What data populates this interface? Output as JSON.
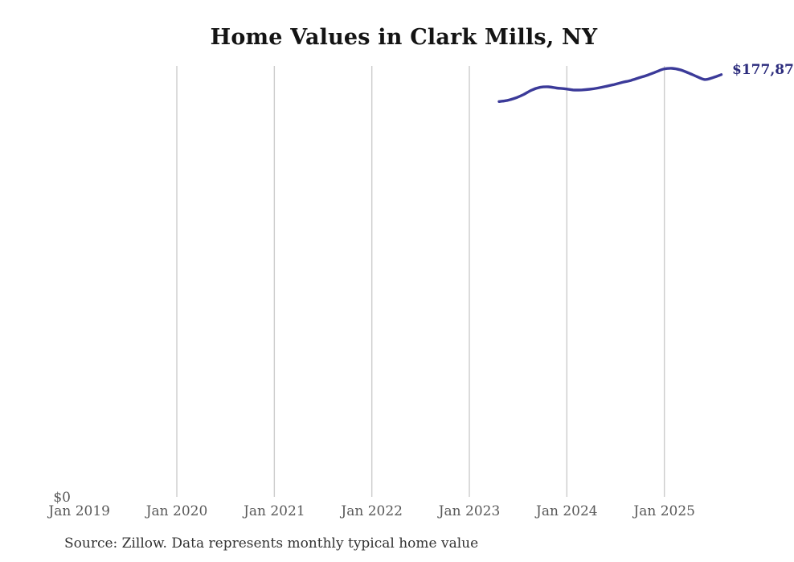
{
  "header": {
    "title": "Home Values in Clark Mills, NY"
  },
  "annotation": {
    "latest_value_label": "$177,87"
  },
  "footer": {
    "source_note": "Source: Zillow. Data represents monthly typical home value"
  },
  "colors": {
    "background": "#ffffff",
    "line": "#3b3a99",
    "latest_label_text": "#2c2c7d",
    "gridline": "#cccccc",
    "axis_text": "#595959",
    "title_text": "#141414",
    "source_text": "#333333"
  },
  "chart_data": {
    "type": "line",
    "title": "Home Values in Clark Mills, NY",
    "x": [
      "2023-05",
      "2023-06",
      "2023-07",
      "2023-08",
      "2023-09",
      "2023-10",
      "2023-11",
      "2023-12",
      "2024-01",
      "2024-02",
      "2024-03",
      "2024-04",
      "2024-05",
      "2024-06",
      "2024-07",
      "2024-08",
      "2024-09",
      "2024-10",
      "2024-11",
      "2024-12",
      "2025-01",
      "2025-02",
      "2025-03",
      "2025-04",
      "2025-05",
      "2025-06",
      "2025-07",
      "2025-08"
    ],
    "series": [
      {
        "name": "Typical home value",
        "values": [
          166500,
          167000,
          168000,
          169500,
          171400,
          172500,
          172700,
          172200,
          171900,
          171400,
          171400,
          171700,
          172200,
          172900,
          173700,
          174600,
          175400,
          176500,
          177600,
          178900,
          180200,
          180500,
          179900,
          178600,
          177100,
          175800,
          176600,
          177870
        ]
      }
    ],
    "x_tick_labels": [
      "Jan 2019",
      "Jan 2020",
      "Jan 2021",
      "Jan 2022",
      "Jan 2023",
      "Jan 2024",
      "Jan 2025"
    ],
    "y_zero_label": "$0",
    "ylim": [
      0,
      185000
    ],
    "grid": "vertical-year-gridlines-only",
    "legend": "none",
    "end_annotation": "$177,87 (label clipped at right edge of image)",
    "xlabel": "",
    "ylabel": ""
  }
}
